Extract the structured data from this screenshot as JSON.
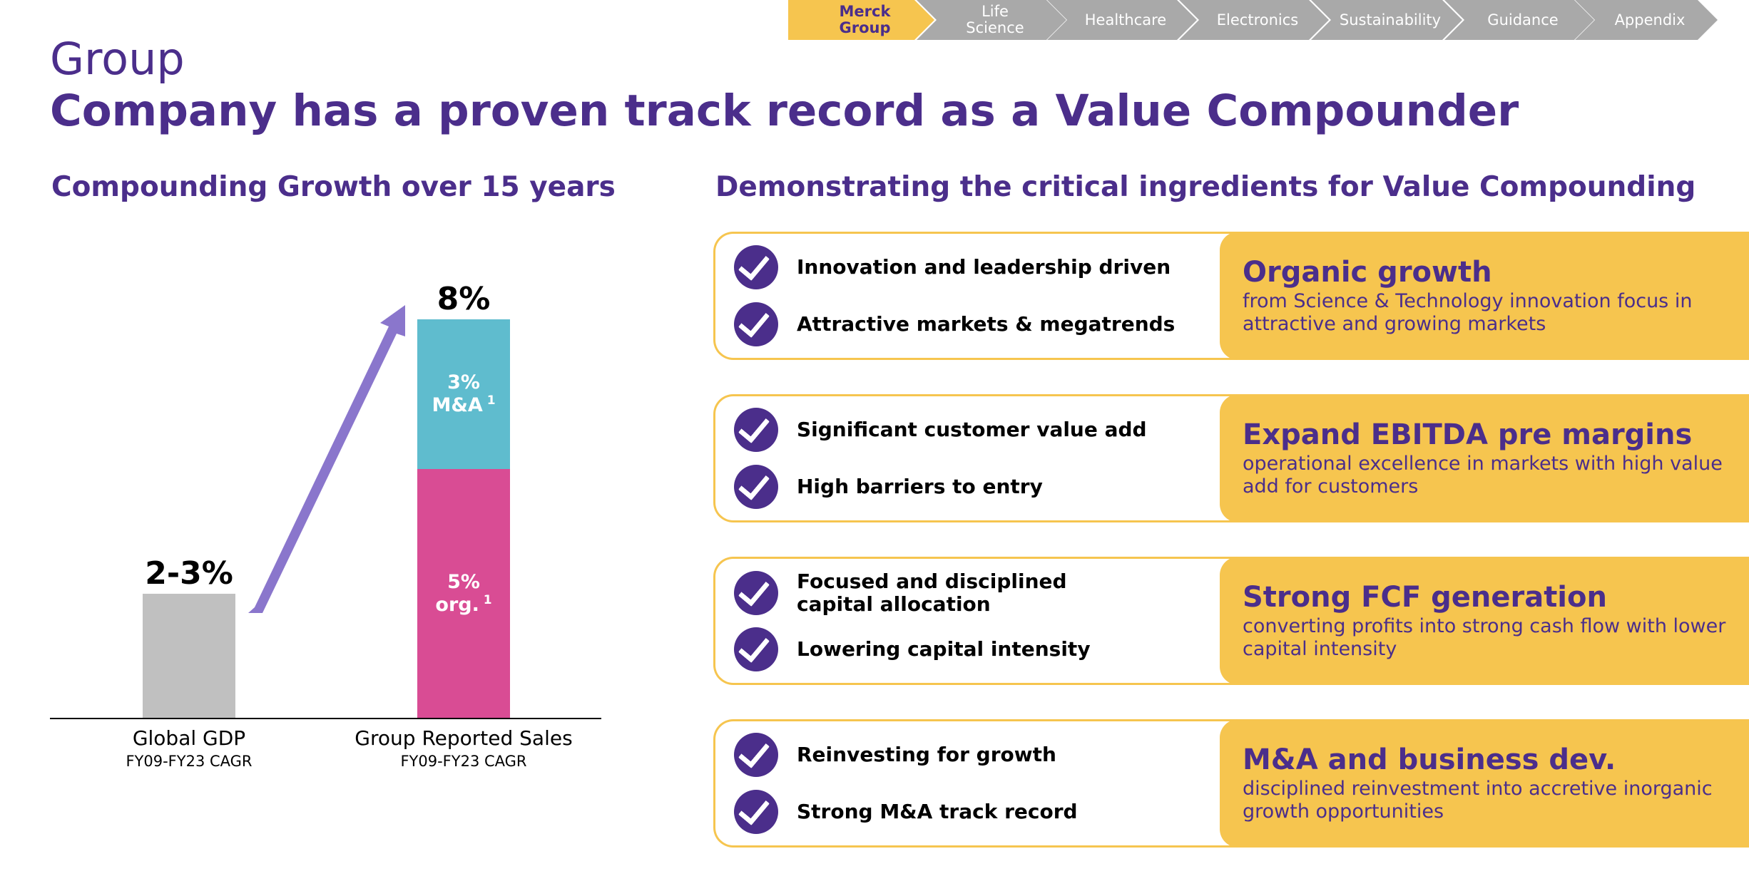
{
  "nav": {
    "tabs": [
      {
        "label": "Merck\nGroup",
        "active": true
      },
      {
        "label": "Life\nScience",
        "active": false
      },
      {
        "label": "Healthcare",
        "active": false
      },
      {
        "label": "Electronics",
        "active": false
      },
      {
        "label": "Sustainability",
        "active": false
      },
      {
        "label": "Guidance",
        "active": false
      },
      {
        "label": "Appendix",
        "active": false
      }
    ]
  },
  "header": {
    "section": "Group",
    "title": "Company has a proven track record as a Value Compounder"
  },
  "left": {
    "subhead": "Compounding Growth over 15 years"
  },
  "right": {
    "subhead": "Demonstrating the critical ingredients for Value Compounding",
    "rows": [
      {
        "ingredients": [
          "Innovation and leadership driven",
          "Attractive markets & megatrends"
        ],
        "result_title": "Organic growth",
        "result_desc": "from Science & Technology innovation focus in attractive and growing markets"
      },
      {
        "ingredients": [
          "Significant customer value add",
          "High barriers to entry"
        ],
        "result_title": "Expand EBITDA pre margins",
        "result_desc": "operational excellence in markets with high value add for customers"
      },
      {
        "ingredients": [
          "Focused and disciplined\ncapital allocation",
          "Lowering capital intensity"
        ],
        "result_title": "Strong FCF generation",
        "result_desc": "converting profits into strong cash flow with lower capital intensity"
      },
      {
        "ingredients": [
          "Reinvesting for growth",
          "Strong M&A track record"
        ],
        "result_title": "M&A and business dev.",
        "result_desc": "disciplined reinvestment into accretive inorganic growth opportunities"
      }
    ]
  },
  "chart_data": {
    "type": "bar",
    "title": "",
    "xlabel": "",
    "ylabel": "",
    "categories": [
      {
        "label": "Global GDP",
        "sublabel": "FY09-FY23 CAGR"
      },
      {
        "label": "Group Reported Sales",
        "sublabel": "FY09-FY23 CAGR"
      }
    ],
    "bars": [
      {
        "total_label": "2-3%",
        "segments": [
          {
            "value": 2.5,
            "label": "",
            "color": "#c0c0c0"
          }
        ]
      },
      {
        "total_label": "8%",
        "segments": [
          {
            "value": 5,
            "label": "5%\norg.",
            "sup": "1",
            "color": "#d94c94"
          },
          {
            "value": 3,
            "label": "3%\nM&A",
            "sup": "1",
            "color": "#5fbcce"
          }
        ]
      }
    ],
    "ymax": 8,
    "arrow_color": "#8a76cc"
  }
}
